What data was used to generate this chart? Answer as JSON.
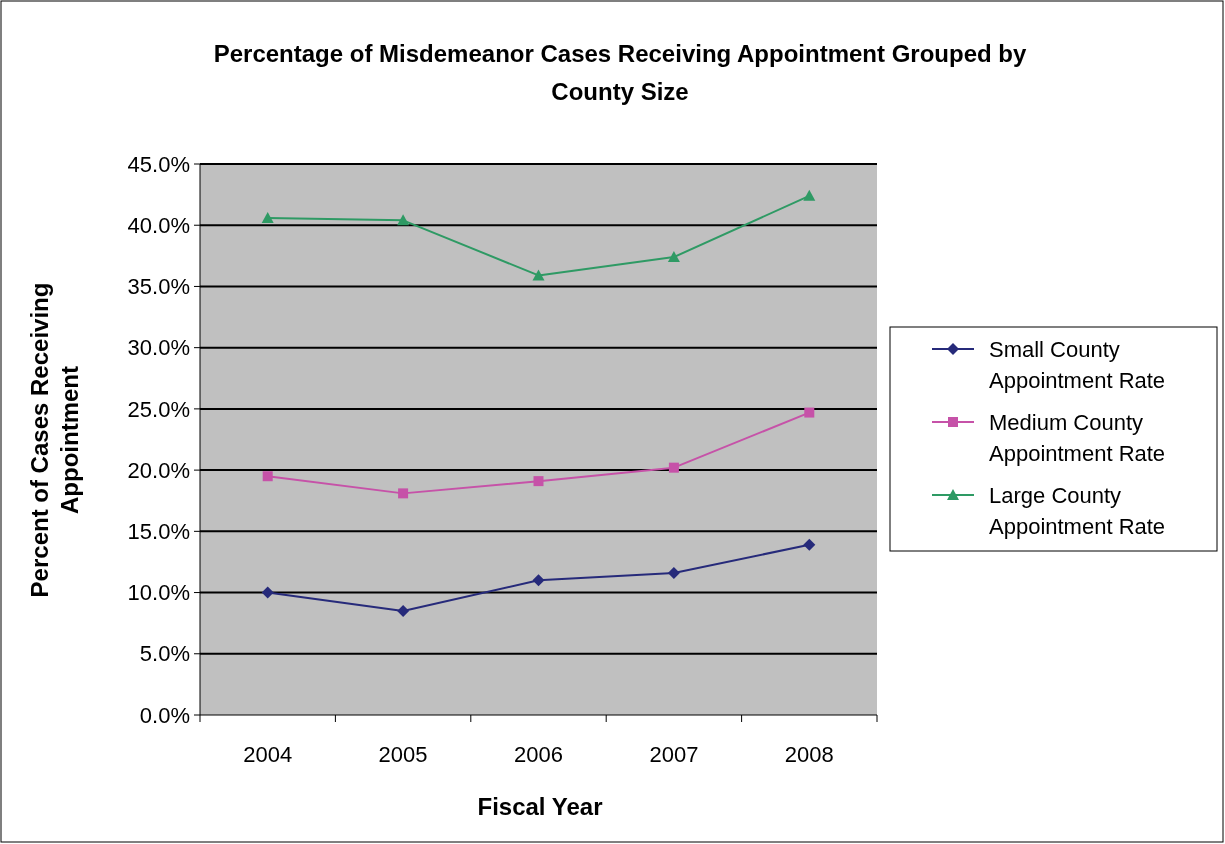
{
  "chart_data": {
    "type": "line",
    "title": "Percentage of Misdemeanor Cases Receiving Appointment Grouped by County Size",
    "xlabel": "Fiscal Year",
    "ylabel": "Percent of Cases Receiving Appointment",
    "categories": [
      "2004",
      "2005",
      "2006",
      "2007",
      "2008"
    ],
    "series": [
      {
        "name": "Small County Appointment Rate",
        "color": "#262a7a",
        "marker": "diamond",
        "values": [
          10.0,
          8.5,
          11.0,
          11.6,
          13.9
        ]
      },
      {
        "name": "Medium County Appointment Rate",
        "color": "#c652a8",
        "marker": "square",
        "values": [
          19.5,
          18.1,
          19.1,
          20.2,
          24.7
        ]
      },
      {
        "name": "Large County Appointment Rate",
        "color": "#2e9a64",
        "marker": "triangle",
        "values": [
          40.6,
          40.4,
          35.9,
          37.4,
          42.4
        ]
      }
    ],
    "ylim": [
      0,
      45
    ],
    "yticks": [
      {
        "value": 0,
        "label": "0.0%"
      },
      {
        "value": 5,
        "label": "5.0%"
      },
      {
        "value": 10,
        "label": "10.0%"
      },
      {
        "value": 15,
        "label": "15.0%"
      },
      {
        "value": 20,
        "label": "20.0%"
      },
      {
        "value": 25,
        "label": "25.0%"
      },
      {
        "value": 30,
        "label": "30.0%"
      },
      {
        "value": 35,
        "label": "35.0%"
      },
      {
        "value": 40,
        "label": "40.0%"
      },
      {
        "value": 45,
        "label": "45.0%"
      }
    ],
    "grid": "y",
    "legend": "right"
  }
}
